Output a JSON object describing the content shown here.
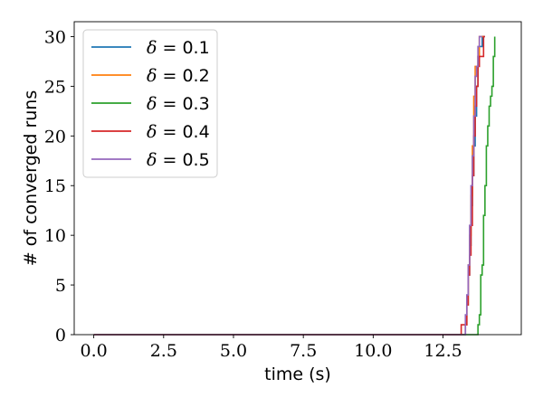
{
  "chart_data": {
    "type": "line",
    "step": true,
    "xlabel": "time (s)",
    "ylabel": "# of converged runs",
    "xlim": [
      -0.7,
      15.3
    ],
    "ylim": [
      0,
      31.5
    ],
    "xticks": [
      0.0,
      2.5,
      5.0,
      7.5,
      10.0,
      12.5
    ],
    "xtick_labels": [
      "0.0",
      "2.5",
      "5.0",
      "7.5",
      "10.0",
      "12.5"
    ],
    "yticks": [
      0,
      5,
      10,
      15,
      20,
      25,
      30
    ],
    "ytick_labels": [
      "0",
      "5",
      "10",
      "15",
      "20",
      "25",
      "30"
    ],
    "grid": false,
    "legend_position": "top-left",
    "series": [
      {
        "name": "δ = 0.1",
        "legend_symbol": "δ",
        "legend_value": "= 0.1",
        "color": "#1f77b4",
        "points": [
          [
            0,
            0
          ],
          [
            13.3,
            0
          ],
          [
            13.3,
            1
          ],
          [
            13.35,
            1
          ],
          [
            13.35,
            3
          ],
          [
            13.4,
            3
          ],
          [
            13.4,
            6
          ],
          [
            13.45,
            6
          ],
          [
            13.45,
            9
          ],
          [
            13.5,
            9
          ],
          [
            13.5,
            13
          ],
          [
            13.55,
            13
          ],
          [
            13.55,
            16
          ],
          [
            13.6,
            16
          ],
          [
            13.6,
            19
          ],
          [
            13.65,
            19
          ],
          [
            13.65,
            22
          ],
          [
            13.7,
            22
          ],
          [
            13.7,
            25
          ],
          [
            13.75,
            25
          ],
          [
            13.75,
            28
          ],
          [
            13.8,
            28
          ],
          [
            13.8,
            29
          ],
          [
            13.9,
            29
          ],
          [
            13.9,
            30
          ],
          [
            14.0,
            30
          ]
        ]
      },
      {
        "name": "δ = 0.2",
        "legend_symbol": "δ",
        "legend_value": "= 0.2",
        "color": "#ff7f0e",
        "points": [
          [
            0,
            0
          ],
          [
            13.3,
            0
          ],
          [
            13.3,
            1
          ],
          [
            13.35,
            1
          ],
          [
            13.35,
            3
          ],
          [
            13.4,
            3
          ],
          [
            13.4,
            7
          ],
          [
            13.45,
            7
          ],
          [
            13.45,
            10
          ],
          [
            13.5,
            10
          ],
          [
            13.5,
            14
          ],
          [
            13.55,
            14
          ],
          [
            13.55,
            19
          ],
          [
            13.6,
            19
          ],
          [
            13.6,
            24
          ],
          [
            13.65,
            24
          ],
          [
            13.65,
            27
          ],
          [
            13.75,
            27
          ],
          [
            13.75,
            28
          ],
          [
            13.8,
            28
          ],
          [
            13.8,
            30
          ],
          [
            13.95,
            30
          ]
        ]
      },
      {
        "name": "δ = 0.3",
        "legend_symbol": "δ",
        "legend_value": "= 0.3",
        "color": "#2ca02c",
        "points": [
          [
            0,
            0
          ],
          [
            13.75,
            0
          ],
          [
            13.75,
            1
          ],
          [
            13.8,
            1
          ],
          [
            13.8,
            2
          ],
          [
            13.85,
            2
          ],
          [
            13.85,
            6
          ],
          [
            13.9,
            6
          ],
          [
            13.9,
            7
          ],
          [
            13.95,
            7
          ],
          [
            13.95,
            12
          ],
          [
            14.0,
            12
          ],
          [
            14.0,
            15
          ],
          [
            14.05,
            15
          ],
          [
            14.05,
            19
          ],
          [
            14.1,
            19
          ],
          [
            14.1,
            21
          ],
          [
            14.15,
            21
          ],
          [
            14.15,
            23
          ],
          [
            14.2,
            23
          ],
          [
            14.2,
            24
          ],
          [
            14.25,
            24
          ],
          [
            14.25,
            25
          ],
          [
            14.3,
            25
          ],
          [
            14.3,
            28
          ],
          [
            14.35,
            28
          ],
          [
            14.35,
            30
          ]
        ]
      },
      {
        "name": "δ = 0.4",
        "legend_symbol": "δ",
        "legend_value": "= 0.4",
        "color": "#d62728",
        "points": [
          [
            0,
            0
          ],
          [
            13.15,
            0
          ],
          [
            13.15,
            1
          ],
          [
            13.35,
            1
          ],
          [
            13.35,
            3
          ],
          [
            13.4,
            3
          ],
          [
            13.4,
            6
          ],
          [
            13.45,
            6
          ],
          [
            13.45,
            8
          ],
          [
            13.5,
            8
          ],
          [
            13.5,
            11
          ],
          [
            13.55,
            11
          ],
          [
            13.55,
            16
          ],
          [
            13.6,
            16
          ],
          [
            13.6,
            20
          ],
          [
            13.65,
            20
          ],
          [
            13.65,
            23
          ],
          [
            13.7,
            23
          ],
          [
            13.7,
            25
          ],
          [
            13.75,
            25
          ],
          [
            13.75,
            27
          ],
          [
            13.8,
            27
          ],
          [
            13.8,
            28
          ],
          [
            13.95,
            28
          ],
          [
            13.95,
            30
          ],
          [
            14.0,
            30
          ]
        ]
      },
      {
        "name": "δ = 0.5",
        "legend_symbol": "δ",
        "legend_value": "= 0.5",
        "color": "#9467bd",
        "points": [
          [
            0,
            0
          ],
          [
            13.3,
            0
          ],
          [
            13.3,
            2
          ],
          [
            13.35,
            2
          ],
          [
            13.35,
            4
          ],
          [
            13.4,
            4
          ],
          [
            13.4,
            7
          ],
          [
            13.45,
            7
          ],
          [
            13.45,
            11
          ],
          [
            13.5,
            11
          ],
          [
            13.5,
            15
          ],
          [
            13.55,
            15
          ],
          [
            13.55,
            18
          ],
          [
            13.6,
            18
          ],
          [
            13.6,
            22
          ],
          [
            13.65,
            22
          ],
          [
            13.65,
            26
          ],
          [
            13.7,
            26
          ],
          [
            13.7,
            27
          ],
          [
            13.75,
            27
          ],
          [
            13.75,
            29
          ],
          [
            13.8,
            29
          ],
          [
            13.8,
            30
          ],
          [
            13.9,
            30
          ]
        ]
      }
    ]
  }
}
